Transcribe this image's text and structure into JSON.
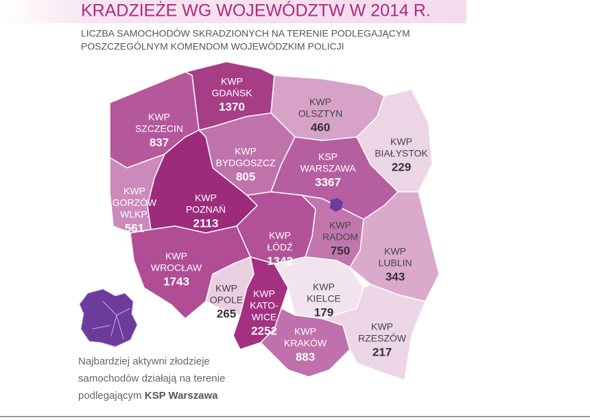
{
  "header": {
    "title": "KRADZIEŻE WG WOJEWÓDZTW W 2014 R.",
    "subtitle": [
      "LICZBA SAMOCHODÓW SKRADZIONYCH NA TERENIE PODLEGAJĄCYM",
      "POSZCZEGÓLNYM KOMENDOM WOJEWÓDZKIM POLICJI"
    ]
  },
  "regions": [
    {
      "label": [
        "KWP",
        "SZCZECIN"
      ],
      "value": 837,
      "color": "#b5579b"
    },
    {
      "label": [
        "KWP",
        "GDAŃSK"
      ],
      "value": 1370,
      "color": "#a63e86"
    },
    {
      "label": [
        "KWP",
        "OLSZTYN"
      ],
      "value": 460,
      "color": "#d6a2c7"
    },
    {
      "label": [
        "KWP",
        "BIAŁYSTOK"
      ],
      "value": 229,
      "color": "#ecd6e6"
    },
    {
      "label": [
        "KWP",
        "BYDGOSZCZ"
      ],
      "value": 805,
      "color": "#c073ab"
    },
    {
      "label": [
        "KSP",
        "WARSZAWA"
      ],
      "value": 3367,
      "color": "#b65fa0"
    },
    {
      "label": [
        "KWP",
        "GORZÓW",
        "WLKP."
      ],
      "value": 561,
      "color": "#cc89bb"
    },
    {
      "label": [
        "KWP",
        "POZNAŃ"
      ],
      "value": 2113,
      "color": "#9d2b7b"
    },
    {
      "label": [
        "KWP",
        "ŁÓDŹ"
      ],
      "value": 1342,
      "color": "#b25197"
    },
    {
      "label": [
        "KWP",
        "RADOM"
      ],
      "value": 750,
      "color": "#c375ae"
    },
    {
      "label": [
        "KWP",
        "LUBLIN"
      ],
      "value": 343,
      "color": "#daa9cc"
    },
    {
      "label": [
        "KWP",
        "WROCŁAW"
      ],
      "value": 1743,
      "color": "#b04d95"
    },
    {
      "label": [
        "KWP",
        "OPOLE"
      ],
      "value": 265,
      "color": "#eacfe2"
    },
    {
      "label": [
        "KWP",
        "KATO-",
        "WICE"
      ],
      "value": 2252,
      "color": "#a33081"
    },
    {
      "label": [
        "KWP",
        "KIELCE"
      ],
      "value": 179,
      "color": "#f2e4ee"
    },
    {
      "label": [
        "KWP",
        "KRAKÓW"
      ],
      "value": 883,
      "color": "#c070aa"
    },
    {
      "label": [
        "KWP",
        "RZESZÓW"
      ],
      "value": 217,
      "color": "#ecd6e6"
    }
  ],
  "note": {
    "lines": [
      "Najbardziej aktywni złodzieje",
      "samochodów działają na terenie",
      "podlegającym"
    ],
    "bold": "KSP Warszawa"
  }
}
